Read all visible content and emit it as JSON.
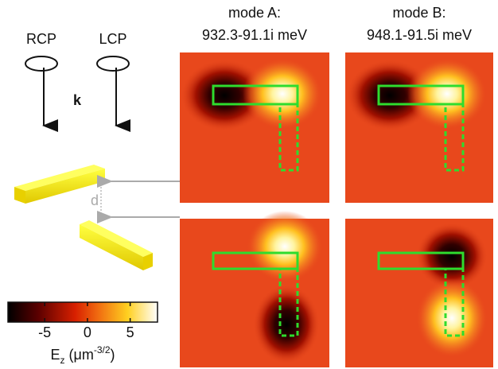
{
  "labels": {
    "rcp": "RCP",
    "lcp": "LCP",
    "k": "k",
    "d": "d"
  },
  "panels": [
    {
      "title": "mode A:",
      "subtitle": "932.3-91.1i meV"
    },
    {
      "title": "mode B:",
      "subtitle": "948.1-91.5i meV"
    }
  ],
  "colorbar": {
    "lim": [
      -9.3,
      8.2
    ],
    "ticks": [
      -5,
      0,
      5
    ],
    "label": {
      "symbol": "E",
      "subscript": "z",
      "unit": " (μm",
      "exponent": "-3/2",
      "close": ")"
    }
  }
}
